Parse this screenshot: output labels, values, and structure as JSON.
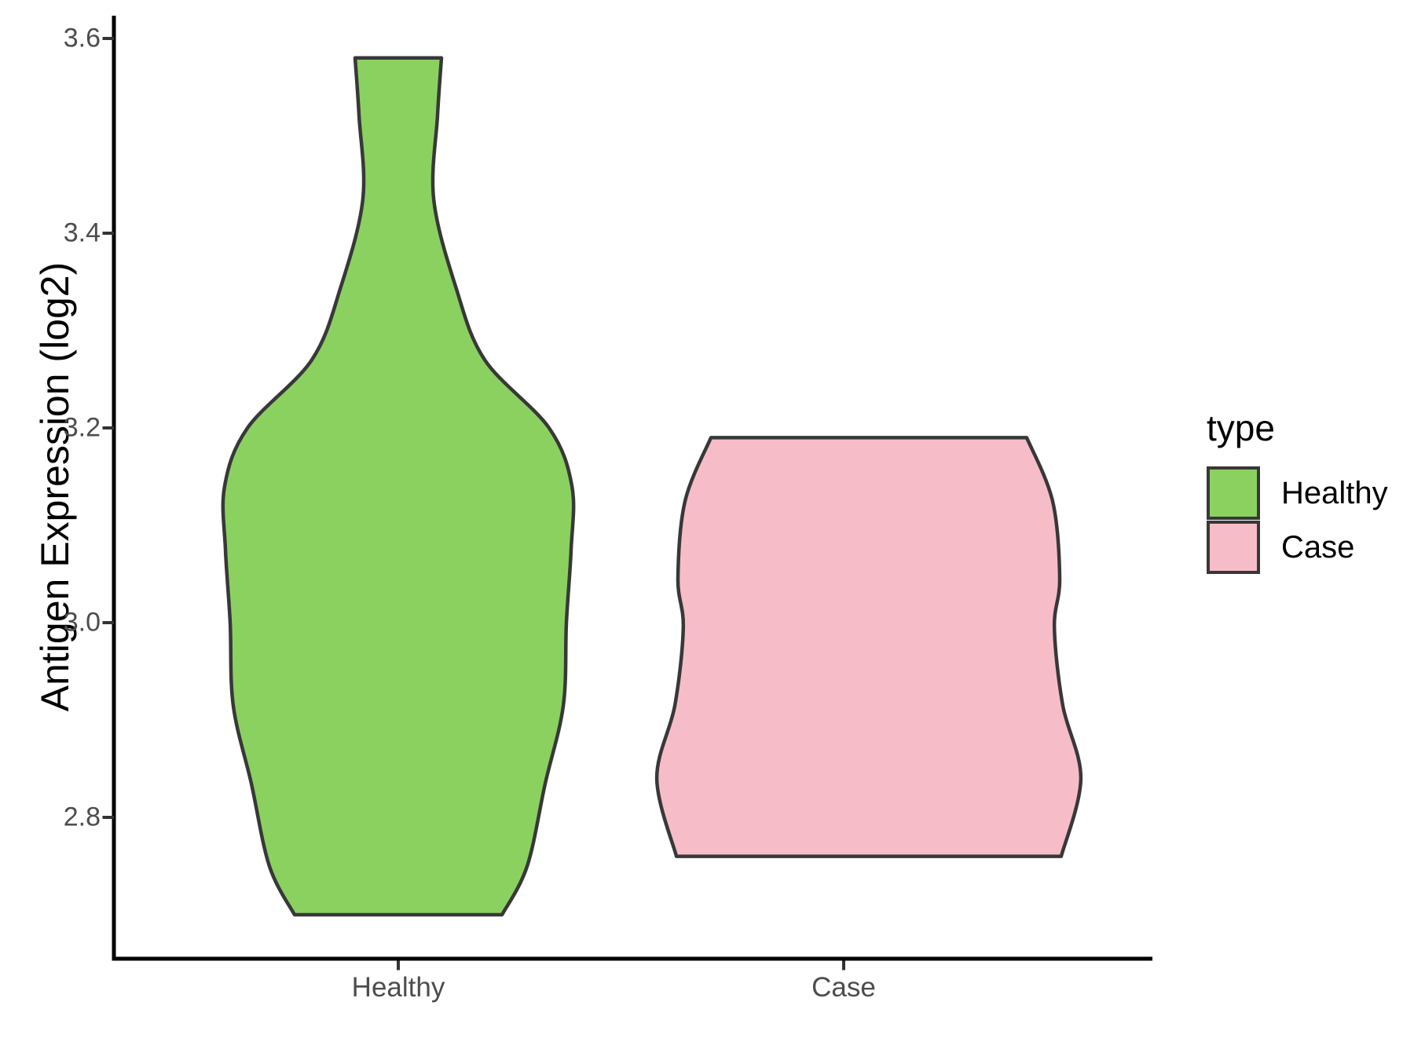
{
  "y_axis": {
    "title": "Antigen Expression (log2)",
    "ticks": [
      {
        "label": "3.6",
        "value": 3.6
      },
      {
        "label": "3.4",
        "value": 3.4
      },
      {
        "label": "3.2",
        "value": 3.2
      },
      {
        "label": "3.0",
        "value": 3.0
      },
      {
        "label": "2.8",
        "value": 2.8
      }
    ]
  },
  "x_axis": {
    "categories": [
      "Healthy",
      "Case"
    ]
  },
  "legend": {
    "title": "type",
    "entries": [
      {
        "label": "Healthy",
        "color": "#8BD160"
      },
      {
        "label": "Case",
        "color": "#F6BDC9"
      }
    ]
  },
  "colors": {
    "healthy_fill": "#8BD160",
    "case_fill": "#F6BDC9",
    "outline": "#383838",
    "axis_line": "#000000",
    "tick_mark": "#333333",
    "axis_text": "#4d4d4d"
  },
  "chart_data": {
    "type": "violin",
    "title": "",
    "xlabel": "",
    "ylabel": "Antigen Expression (log2)",
    "categories": [
      "Healthy",
      "Case"
    ],
    "y_tick_values": [
      2.8,
      3.0,
      3.2,
      3.4,
      3.6
    ],
    "y_range_shown": [
      2.65,
      3.62
    ],
    "grid": false,
    "legend_position": "right",
    "violins": [
      {
        "category": "Healthy",
        "group": "Healthy",
        "fill": "#8BD160",
        "outline": "#383838",
        "y_min": 2.7,
        "y_max": 3.58,
        "profile_value_width": [
          [
            3.58,
            0.194
          ],
          [
            3.52,
            0.176
          ],
          [
            3.435,
            0.159
          ],
          [
            3.345,
            0.258
          ],
          [
            3.27,
            0.388
          ],
          [
            3.2,
            0.677
          ],
          [
            3.14,
            0.78
          ],
          [
            3.075,
            0.776
          ],
          [
            3.0,
            0.755
          ],
          [
            2.915,
            0.741
          ],
          [
            2.835,
            0.66
          ],
          [
            2.75,
            0.579
          ],
          [
            2.7,
            0.466
          ]
        ]
      },
      {
        "category": "Case",
        "group": "Case",
        "fill": "#F6BDC9",
        "outline": "#383838",
        "y_min": 2.76,
        "y_max": 3.19,
        "profile_value_width": [
          [
            3.19,
            0.709
          ],
          [
            3.125,
            0.825
          ],
          [
            3.045,
            0.857
          ],
          [
            2.995,
            0.833
          ],
          [
            2.915,
            0.871
          ],
          [
            2.84,
            0.952
          ],
          [
            2.76,
            0.864
          ]
        ]
      }
    ]
  }
}
